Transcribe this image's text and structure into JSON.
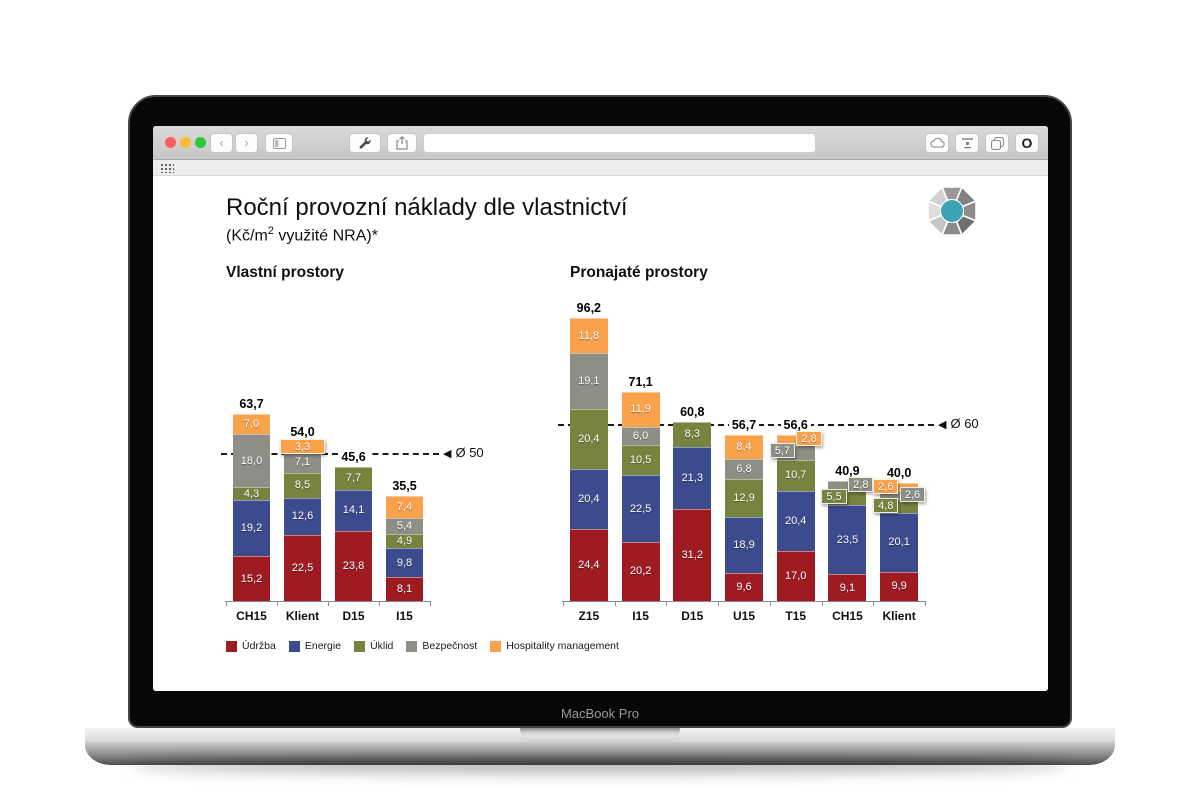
{
  "device": {
    "label": "MacBook Pro"
  },
  "browser": {
    "address": "",
    "address_placeholder": "",
    "traffic_lights": {
      "close": "#ff5f57",
      "minimize": "#febc2e",
      "zoom": "#28c840"
    },
    "back_glyph": "‹",
    "forward_glyph": "›",
    "opera_glyph": "O"
  },
  "page": {
    "title": "Roční provozní náklady dle vlastnictví",
    "subtitle": {
      "pre": "(Kč/m",
      "sup": "2",
      "post": " využité NRA)*"
    }
  },
  "chart_data": [
    {
      "type": "bar",
      "stacked": true,
      "title": "Vlastní prostory",
      "categories": [
        "CH15",
        "Klient",
        "D15",
        "I15"
      ],
      "series": [
        {
          "name": "Údržba",
          "color": "#9e1b21",
          "values": [
            15.2,
            22.5,
            23.8,
            8.1
          ]
        },
        {
          "name": "Energie",
          "color": "#3b4b8e",
          "values": [
            19.2,
            12.6,
            14.1,
            9.8
          ]
        },
        {
          "name": "Úklid",
          "color": "#77843f",
          "values": [
            4.3,
            8.5,
            7.7,
            4.9
          ]
        },
        {
          "name": "Bezpečnost",
          "color": "#8f8e86",
          "values": [
            18.0,
            7.1,
            0,
            5.4
          ]
        },
        {
          "name": "Hospitality management",
          "color": "#f9a14b",
          "values": [
            7.0,
            3.3,
            0,
            7.4
          ]
        }
      ],
      "totals": [
        63.7,
        54.0,
        45.6,
        35.5
      ],
      "reference_line": {
        "value": 50,
        "label": "Ø 50",
        "marker": "◀"
      },
      "ylim": [
        0,
        100
      ],
      "grid": false,
      "decimal_comma": true,
      "label_chips": [
        {
          "category": "Klient",
          "series": "Hospitality management",
          "side": "center"
        }
      ]
    },
    {
      "type": "bar",
      "stacked": true,
      "title": "Pronajaté prostory",
      "categories": [
        "Z15",
        "I15",
        "D15",
        "U15",
        "T15",
        "CH15",
        "Klient"
      ],
      "series": [
        {
          "name": "Údržba",
          "color": "#9e1b21",
          "values": [
            24.4,
            20.2,
            31.2,
            9.6,
            17.0,
            9.1,
            9.9
          ]
        },
        {
          "name": "Energie",
          "color": "#3b4b8e",
          "values": [
            20.4,
            22.5,
            21.3,
            18.9,
            20.4,
            23.5,
            20.1
          ]
        },
        {
          "name": "Úklid",
          "color": "#77843f",
          "values": [
            20.4,
            10.5,
            8.3,
            12.9,
            10.7,
            5.5,
            4.8
          ]
        },
        {
          "name": "Bezpečnost",
          "color": "#8f8e86",
          "values": [
            19.1,
            6.0,
            0,
            6.8,
            5.7,
            2.8,
            2.6
          ]
        },
        {
          "name": "Hospitality management",
          "color": "#f9a14b",
          "values": [
            11.8,
            11.9,
            0,
            8.4,
            2.8,
            0,
            2.6
          ]
        }
      ],
      "totals": [
        96.2,
        71.1,
        60.8,
        56.7,
        56.6,
        40.9,
        40.0
      ],
      "reference_line": {
        "value": 60,
        "label": "Ø 60",
        "marker": "◀"
      },
      "ylim": [
        0,
        100
      ],
      "grid": false,
      "decimal_comma": true,
      "label_chips": [
        {
          "category": "T15",
          "series": "Bezpečnost",
          "side": "left"
        },
        {
          "category": "T15",
          "series": "Hospitality management",
          "side": "right"
        },
        {
          "category": "CH15",
          "series": "Úklid",
          "side": "left"
        },
        {
          "category": "CH15",
          "series": "Bezpečnost",
          "side": "right"
        },
        {
          "category": "Klient",
          "series": "Úklid",
          "side": "left"
        },
        {
          "category": "Klient",
          "series": "Bezpečnost",
          "side": "right"
        },
        {
          "category": "Klient",
          "series": "Hospitality management",
          "side": "left"
        }
      ]
    }
  ],
  "logo": {
    "center_color": "#3ba3b3"
  }
}
